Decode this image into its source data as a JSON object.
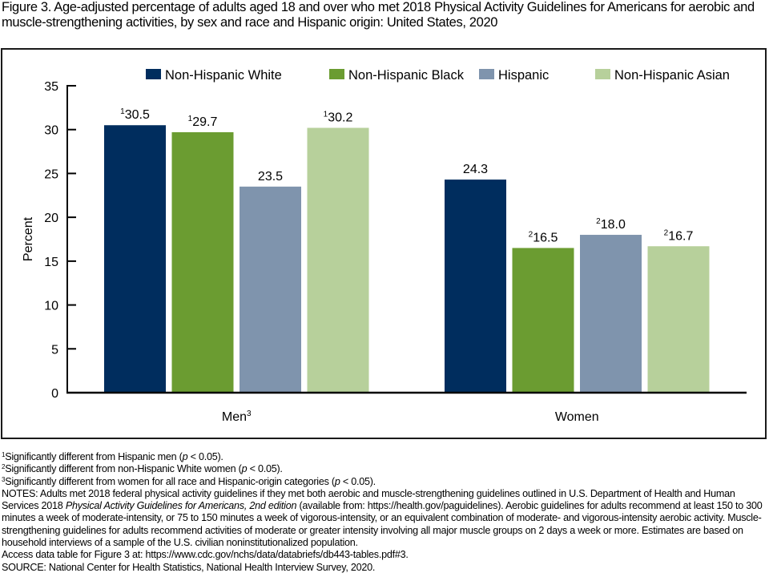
{
  "title": "Figure 3. Age-adjusted percentage of adults aged 18 and over who met 2018 Physical Activity Guidelines for Americans for aerobic and muscle-strengthening activities, by sex and race and Hispanic origin: United States, 2020",
  "chart_data": {
    "type": "bar",
    "title": "Figure 3. Age-adjusted percentage of adults aged 18 and over who met 2018 Physical Activity Guidelines for Americans for aerobic and muscle-strengthening activities, by sex and race and Hispanic origin: United States, 2020",
    "xlabel": "",
    "ylabel": "Percent",
    "ylim": [
      0,
      35
    ],
    "yticks": [
      0,
      5,
      10,
      15,
      20,
      25,
      30,
      35
    ],
    "grid": false,
    "legend_position": "top",
    "categories": [
      {
        "label": "Men",
        "superscript": "3"
      },
      {
        "label": "Women",
        "superscript": ""
      }
    ],
    "series": [
      {
        "name": "Non-Hispanic White",
        "color": "#002d5e",
        "values": [
          30.5,
          24.3
        ],
        "label_superscripts": [
          "1",
          ""
        ]
      },
      {
        "name": "Non-Hispanic Black",
        "color": "#6b9c31",
        "values": [
          29.7,
          16.5
        ],
        "label_superscripts": [
          "1",
          "2"
        ]
      },
      {
        "name": "Hispanic",
        "color": "#7f94ad",
        "values": [
          23.5,
          18.0
        ],
        "label_superscripts": [
          "",
          "2"
        ]
      },
      {
        "name": "Non-Hispanic Asian",
        "color": "#b7d09b",
        "values": [
          30.2,
          16.7
        ],
        "label_superscripts": [
          "1",
          "2"
        ]
      }
    ]
  },
  "footnotes": [
    {
      "sup": "1",
      "text": "Significantly different from Hispanic men (",
      "italic": "p",
      "tail": " < 0.05)."
    },
    {
      "sup": "2",
      "text": "Significantly different from non-Hispanic White women (",
      "italic": "p",
      "tail": " < 0.05)."
    },
    {
      "sup": "3",
      "text": "Significantly different from women for all race and Hispanic-origin categories (",
      "italic": "p",
      "tail": " < 0.05)."
    }
  ],
  "notes": {
    "part1": "NOTES: Adults met 2018 federal physical activity guidelines if they met both aerobic and muscle-strengthening guidelines outlined in U.S. Department of Health and Human Services 2018 ",
    "italic": "Physical Activity Guidelines for Americans, 2nd edition",
    "part2": " (available from: https://health.gov/paguidelines). Aerobic guidelines for adults recommend at least 150 to 300 minutes a week of moderate-intensity, or 75 to 150 minutes  a week of vigorous-intensity, or an equivalent combination of moderate- and vigorous-intensity aerobic activity. Muscle-strengthening guidelines for adults recommend activities of moderate or greater intensity involving all major muscle groups on 2 days a week or more. Estimates are based on household interviews of a sample of the U.S. civilian noninstitutionalized  population.",
    "access": "Access data table for Figure 3 at: https://www.cdc.gov/nchs/data/databriefs/db443-tables.pdf#3.",
    "source": "SOURCE: National Center for Health Statistics, National Health Interview Survey, 2020."
  }
}
